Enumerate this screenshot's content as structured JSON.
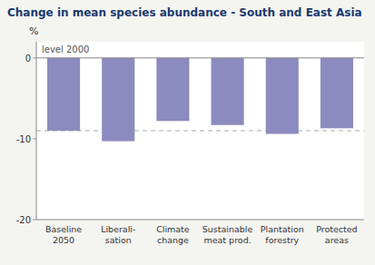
{
  "chart_data": {
    "type": "bar",
    "title": "Change in mean species abundance - South and East Asia",
    "y_label": "%",
    "categories": [
      "Baseline\n2050",
      "Liberali-\nsation",
      "Climate\nchange",
      "Sustainable\nmeat prod.",
      "Plantation\nforestry",
      "Protected\nareas"
    ],
    "values": [
      -9.0,
      -10.3,
      -7.8,
      -8.3,
      -9.4,
      -8.7
    ],
    "color": "#8b8bbf",
    "ylim": [
      -20,
      2
    ],
    "yticks": [
      -20,
      -10,
      0
    ],
    "reference_line": -9.0,
    "annotation": "level 2000",
    "grid": false
  }
}
